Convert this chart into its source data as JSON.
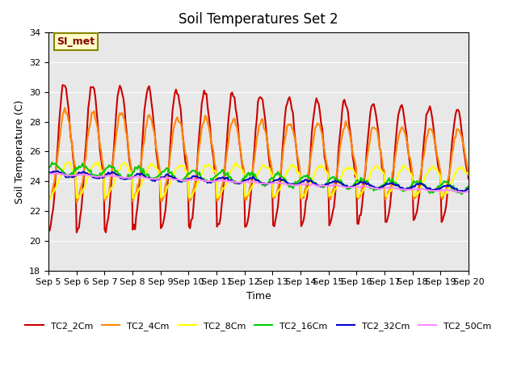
{
  "title": "Soil Temperatures Set 2",
  "xlabel": "Time",
  "ylabel": "Soil Temperature (C)",
  "ylim": [
    18,
    34
  ],
  "annotation_text": "SI_met",
  "background_color": "#e8e8e8",
  "fig_background": "#ffffff",
  "series": {
    "TC2_2Cm": {
      "color": "#cc0000",
      "linewidth": 1.5
    },
    "TC2_4Cm": {
      "color": "#ff8800",
      "linewidth": 1.5
    },
    "TC2_8Cm": {
      "color": "#ffff00",
      "linewidth": 1.5
    },
    "TC2_16Cm": {
      "color": "#00cc00",
      "linewidth": 1.5
    },
    "TC2_32Cm": {
      "color": "#0000cc",
      "linewidth": 1.5
    },
    "TC2_50Cm": {
      "color": "#ff88ff",
      "linewidth": 1.5
    }
  },
  "x_tick_labels": [
    "Sep 5",
    "Sep 6",
    "Sep 7",
    "Sep 8",
    "Sep 9",
    "Sep 10",
    "Sep 11",
    "Sep 12",
    "Sep 13",
    "Sep 14",
    "Sep 15",
    "Sep 16",
    "Sep 17",
    "Sep 18",
    "Sep 19",
    "Sep 20"
  ],
  "n_days": 15,
  "pts_per_day": 24
}
